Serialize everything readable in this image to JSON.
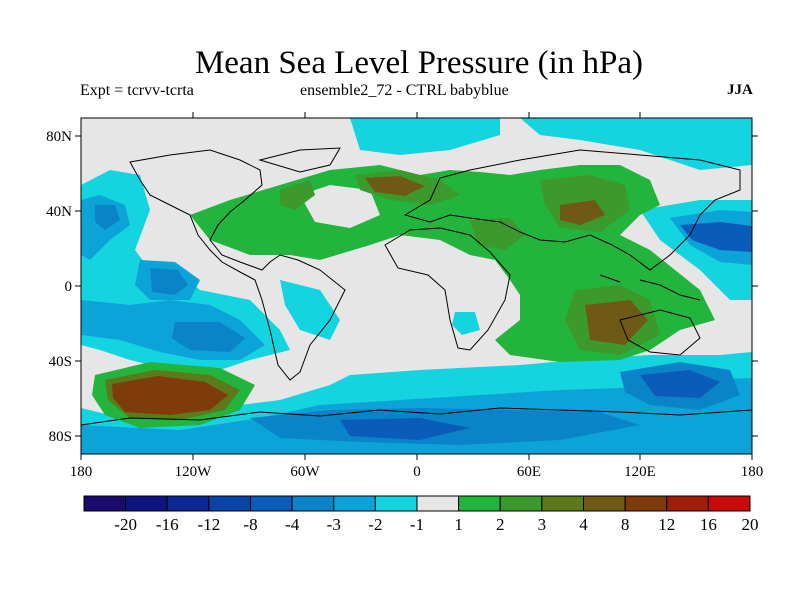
{
  "title": "Mean Sea Level Pressure (in hPa)",
  "experiment": "Expt = tcrvv-tcrta",
  "ensemble": "ensemble2_72 - CTRL babyblue",
  "season": "JJA",
  "axes": {
    "lat_ticks": [
      "80N",
      "40N",
      "0",
      "40S",
      "80S"
    ],
    "lon_ticks": [
      "180",
      "120W",
      "60W",
      "0",
      "60E",
      "120E",
      "180"
    ]
  },
  "colorbar": {
    "colors": [
      "#1a0a6e",
      "#0c1480",
      "#0a2894",
      "#0a44a8",
      "#0a5cb8",
      "#0a84c8",
      "#0ca4d8",
      "#14d4e0",
      "#e6e6e6",
      "#22b43c",
      "#3c9a2c",
      "#5a7a1c",
      "#6e5a14",
      "#7e3c0a",
      "#9e1e0a",
      "#c80a0a"
    ],
    "labels": [
      "-20",
      "-16",
      "-12",
      "-8",
      "-4",
      "-3",
      "-2",
      "-1",
      "1",
      "2",
      "3",
      "4",
      "8",
      "12",
      "16",
      "20"
    ]
  }
}
